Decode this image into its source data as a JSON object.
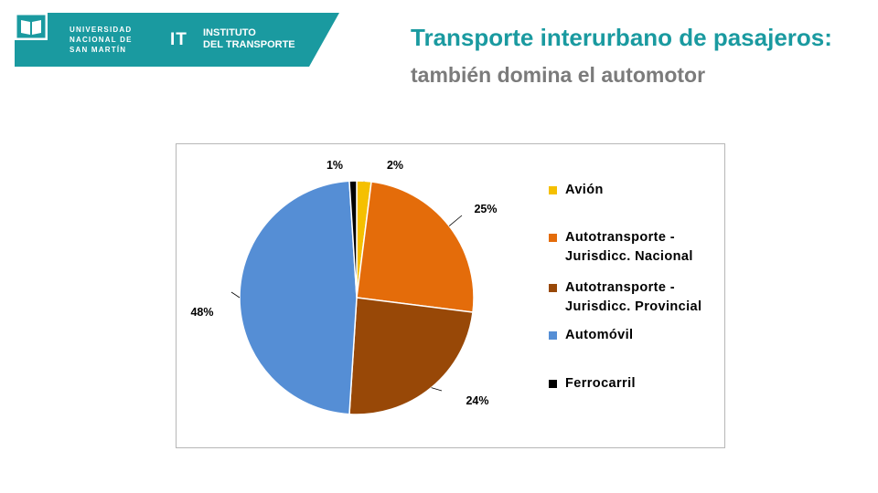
{
  "header": {
    "university_lines": [
      "UNIVERSIDAD",
      "NACIONAL DE",
      "SAN MARTÍN"
    ],
    "it_mark": "IT",
    "institute_lines": [
      "INSTITUTO",
      "DEL TRANSPORTE"
    ],
    "title": "Transporte interurbano de pasajeros:",
    "subtitle": "también domina el automotor",
    "brand_color": "#1a9aa0"
  },
  "chart_data": {
    "type": "pie",
    "title": "",
    "slices": [
      {
        "label": "Avión",
        "value": 2,
        "display": "2%",
        "color": "#f5c000"
      },
      {
        "label": "Autotransporte - Jurisdicc. Nacional",
        "value": 25,
        "display": "25%",
        "color": "#e46c0a"
      },
      {
        "label": "Autotransporte - Jurisdicc. Provincial",
        "value": 24,
        "display": "24%",
        "color": "#984807"
      },
      {
        "label": "Automóvil",
        "value": 48,
        "display": "48%",
        "color": "#558ed5"
      },
      {
        "label": "Ferrocarril",
        "value": 1,
        "display": "1%",
        "color": "#000000"
      }
    ],
    "legend_placement": "right",
    "legend": [
      {
        "text": "Avión",
        "color": "#f5c000"
      },
      {
        "text": "Autotransporte -\nJurisdicc. Nacional",
        "color": "#e46c0a"
      },
      {
        "text": "Autotransporte -\nJurisdicc. Provincial",
        "color": "#984807"
      },
      {
        "text": "Automóvil",
        "color": "#558ed5"
      },
      {
        "text": "Ferrocarril",
        "color": "#000000"
      }
    ]
  }
}
